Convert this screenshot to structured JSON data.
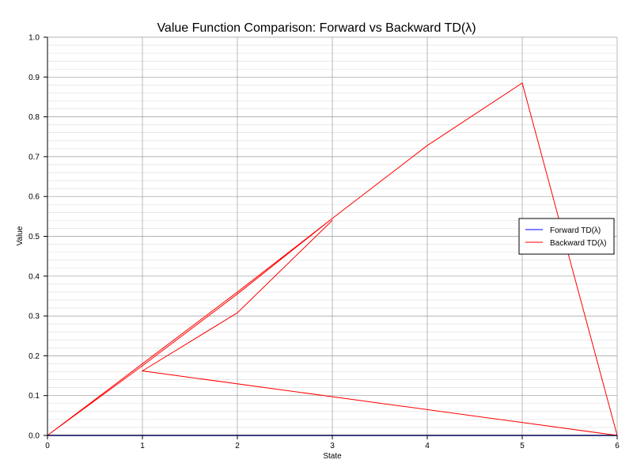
{
  "chart_data": {
    "type": "line",
    "title": "Value Function Comparison: Forward vs Backward TD(λ)",
    "xlabel": "State",
    "ylabel": "Value",
    "xlim": [
      0,
      6
    ],
    "ylim": [
      0,
      1.0
    ],
    "x_ticks": [
      "0",
      "1",
      "2",
      "3",
      "4",
      "5",
      "6"
    ],
    "y_ticks": [
      "0.0",
      "0.1",
      "0.2",
      "0.3",
      "0.4",
      "0.5",
      "0.6",
      "0.7",
      "0.8",
      "0.9",
      "1.0"
    ],
    "grid": true,
    "minor_grid": true,
    "legend_position": "right",
    "series": [
      {
        "name": "Forward TD(λ)",
        "color": "#0000ff",
        "points": [
          [
            0,
            0.0
          ],
          [
            1,
            0.0
          ],
          [
            2,
            0.0
          ],
          [
            3,
            0.0
          ],
          [
            4,
            0.0
          ],
          [
            5,
            0.0
          ],
          [
            6,
            0.0
          ]
        ]
      },
      {
        "name": "Backward TD(λ)",
        "color": "#ff0000",
        "points": [
          [
            0,
            0.0
          ],
          [
            1,
            0.18
          ],
          [
            2,
            0.36
          ],
          [
            3,
            0.545
          ],
          [
            2,
            0.355
          ],
          [
            1,
            0.175
          ],
          [
            0,
            0.0
          ],
          [
            1,
            0.18
          ],
          [
            2,
            0.36
          ],
          [
            3,
            0.545
          ],
          [
            4,
            0.728
          ],
          [
            5,
            0.885
          ],
          [
            6,
            0.0
          ],
          [
            1,
            0.162
          ],
          [
            2,
            0.308
          ],
          [
            3,
            0.54
          ]
        ]
      }
    ]
  }
}
